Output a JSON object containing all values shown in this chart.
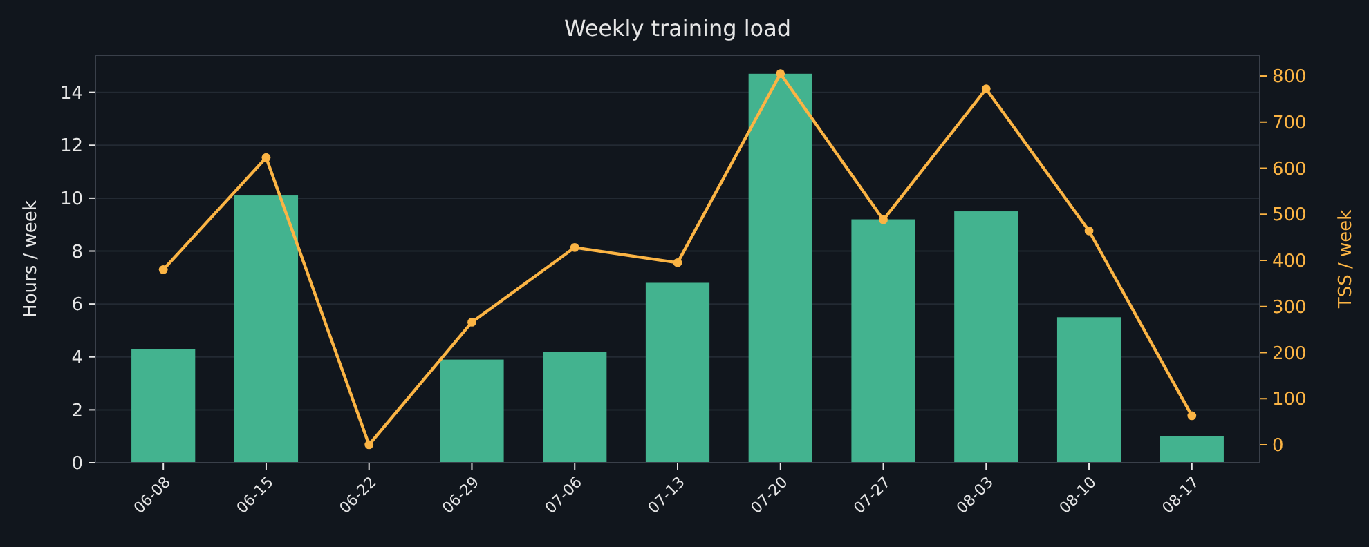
{
  "chart_data": {
    "type": "bar",
    "title": "Weekly training load",
    "ylabel": "Hours / week",
    "y2label": "TSS / week",
    "categories": [
      "06-08",
      "06-15",
      "06-22",
      "06-29",
      "07-06",
      "07-13",
      "07-20",
      "07-27",
      "08-03",
      "08-10",
      "08-17"
    ],
    "series": [
      {
        "color": "#43b38f",
        "values": [
          4.3,
          10.1,
          0,
          3.9,
          4.2,
          6.8,
          14.7,
          9.2,
          9.5,
          5.5,
          1.0
        ]
      },
      {
        "type": "line",
        "axis": "y2",
        "color": "#fbb444",
        "marker": "circle",
        "values": [
          380,
          623,
          0,
          266,
          428,
          395,
          805,
          488,
          772,
          464,
          63
        ]
      }
    ],
    "ylim": [
      0,
      15.4
    ],
    "yticks": [
      0,
      2,
      4,
      6,
      8,
      10,
      12,
      14
    ],
    "y2lim": [
      -39,
      845
    ],
    "y2ticks": [
      0,
      100,
      200,
      300,
      400,
      500,
      600,
      700,
      800
    ],
    "grid": "y"
  }
}
